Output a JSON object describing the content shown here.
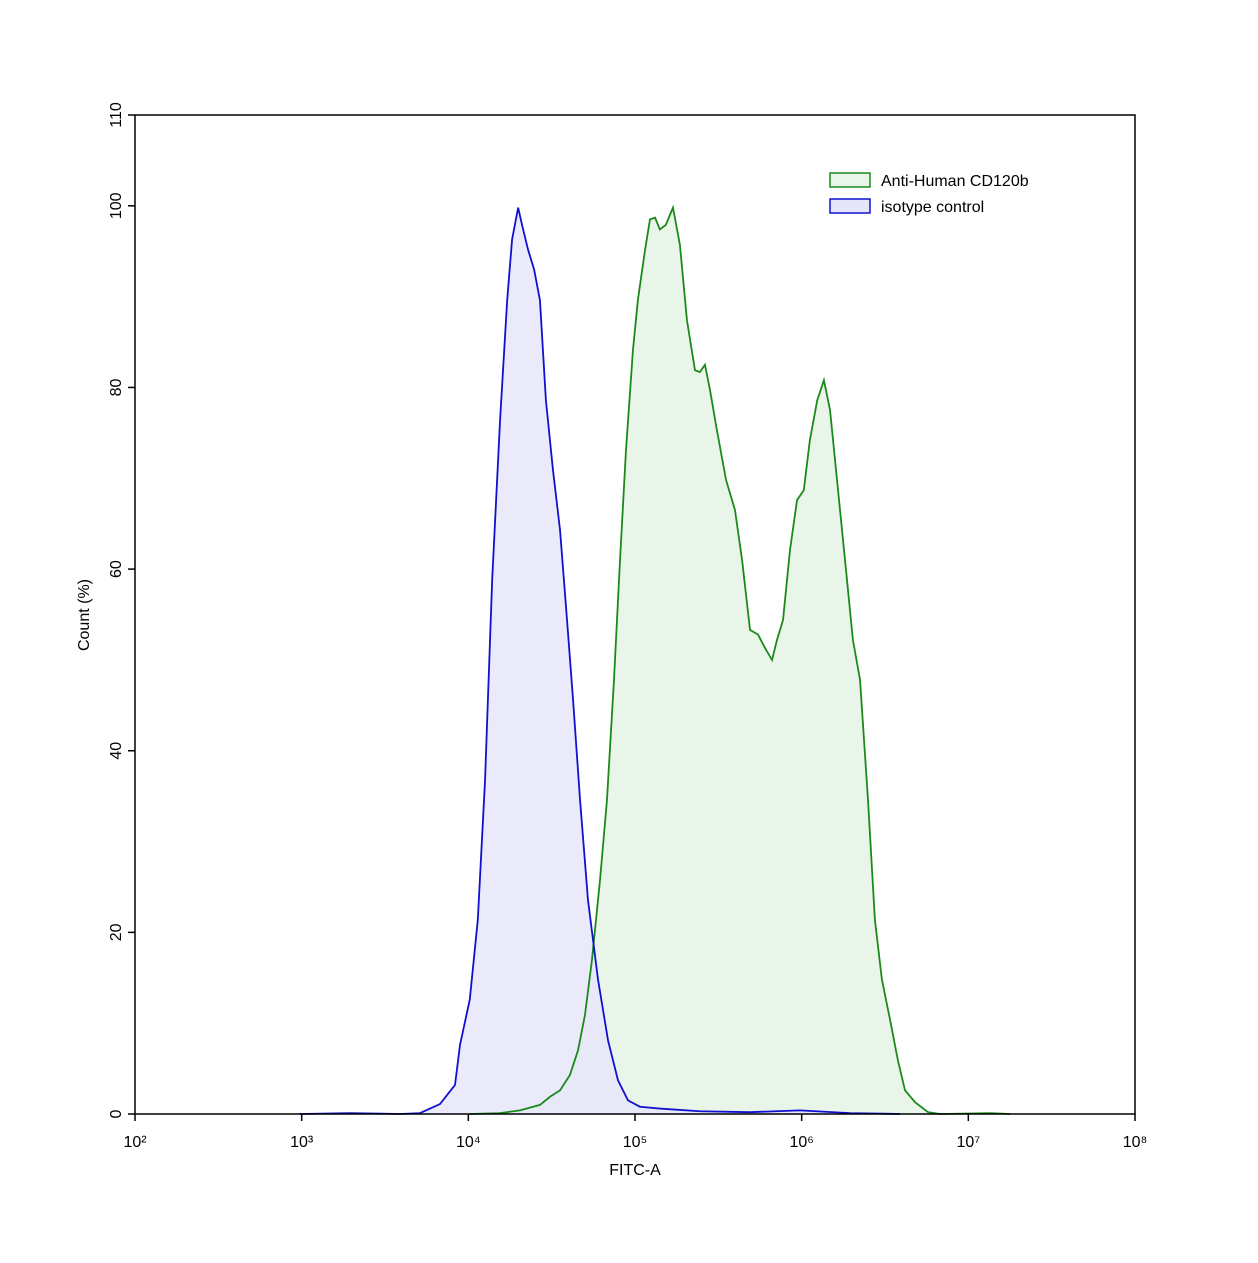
{
  "chart_data": {
    "type": "histogram-overlay",
    "xlabel": "FITC-A",
    "ylabel": "Count  (%)",
    "xscale": "log",
    "xlim": [
      100,
      100000000
    ],
    "ylim": [
      0,
      110
    ],
    "xticks": [
      {
        "value": 100,
        "label": "10²"
      },
      {
        "value": 1000,
        "label": "10³"
      },
      {
        "value": 10000,
        "label": "10⁴"
      },
      {
        "value": 100000,
        "label": "10⁵"
      },
      {
        "value": 1000000,
        "label": "10⁶"
      },
      {
        "value": 10000000,
        "label": "10⁷"
      },
      {
        "value": 100000000,
        "label": "10⁸"
      }
    ],
    "yticks": [
      0,
      20,
      40,
      60,
      80,
      100,
      110
    ],
    "legend_position": "upper right",
    "series": [
      {
        "name": "Anti-Human CD120b",
        "color": "#1a8a1a",
        "fill": "#e9f5e9",
        "x": [
          10200,
          15500,
          20400,
          26900,
          30900,
          35500,
          40700,
          45500,
          50100,
          55200,
          61700,
          67900,
          74800,
          81300,
          88300,
          97200,
          104000,
          115000,
          123000,
          132000,
          141000,
          153000,
          169000,
          186000,
          205000,
          229000,
          245000,
          263000,
          282000,
          310000,
          352000,
          398000,
          439000,
          490000,
          547000,
          603000,
          664000,
          711000,
          773000,
          851000,
          938000,
          1030000,
          1120000,
          1240000,
          1360000,
          1480000,
          1630000,
          1820000,
          2030000,
          2240000,
          2500000,
          2750000,
          3030000,
          3390000,
          3780000,
          4170000,
          4790000,
          5730000,
          6760000,
          13500000,
          17800000
        ],
        "values": [
          0,
          0.1,
          0.4,
          1,
          1.9,
          2.6,
          4.3,
          7,
          10.9,
          17,
          25.8,
          34.6,
          47.8,
          61,
          73.1,
          84.1,
          89.6,
          95.2,
          98.5,
          98.7,
          97.4,
          97.9,
          99.8,
          95.7,
          87.4,
          81.9,
          81.7,
          82.5,
          79.7,
          75.3,
          69.8,
          66.5,
          61,
          53.3,
          52.8,
          51.3,
          50,
          52.2,
          54.4,
          62.1,
          67.6,
          68.7,
          74.2,
          78.6,
          80.8,
          77.5,
          69.8,
          61,
          52.2,
          47.8,
          34.6,
          21.4,
          14.8,
          10.4,
          5.9,
          2.6,
          1.3,
          0.2,
          0,
          0.1,
          0
        ]
      },
      {
        "name": "isotype control",
        "color": "#1010d0",
        "fill": "#e6e6fa",
        "x": [
          977,
          1950,
          3890,
          5130,
          6760,
          8320,
          8910,
          10200,
          11400,
          12600,
          13900,
          15500,
          17100,
          18300,
          19900,
          21000,
          22800,
          24800,
          26900,
          29200,
          32200,
          35500,
          39100,
          42500,
          46800,
          52200,
          60000,
          68900,
          79100,
          90800,
          107000,
          141000,
          245000,
          490000,
          977000,
          1950000,
          3890000
        ],
        "values": [
          0,
          0.1,
          0,
          0.1,
          1.1,
          3.2,
          7.6,
          12.6,
          21.4,
          36.8,
          58.8,
          76.4,
          89.6,
          96.3,
          99.8,
          97.9,
          95.2,
          93,
          89.6,
          78.6,
          70.9,
          64.3,
          54.4,
          45.6,
          34.6,
          23.6,
          14.8,
          8.1,
          3.7,
          1.5,
          0.8,
          0.6,
          0.3,
          0.2,
          0.4,
          0.1,
          0
        ]
      }
    ]
  }
}
